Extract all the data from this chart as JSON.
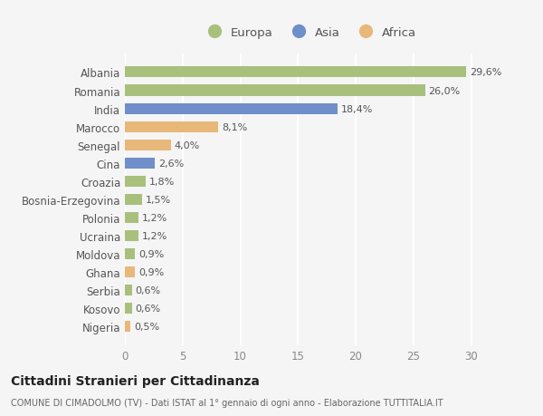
{
  "countries": [
    "Albania",
    "Romania",
    "India",
    "Marocco",
    "Senegal",
    "Cina",
    "Croazia",
    "Bosnia-Erzegovina",
    "Polonia",
    "Ucraina",
    "Moldova",
    "Ghana",
    "Serbia",
    "Kosovo",
    "Nigeria"
  ],
  "values": [
    29.6,
    26.0,
    18.4,
    8.1,
    4.0,
    2.6,
    1.8,
    1.5,
    1.2,
    1.2,
    0.9,
    0.9,
    0.6,
    0.6,
    0.5
  ],
  "labels": [
    "29,6%",
    "26,0%",
    "18,4%",
    "8,1%",
    "4,0%",
    "2,6%",
    "1,8%",
    "1,5%",
    "1,2%",
    "1,2%",
    "0,9%",
    "0,9%",
    "0,6%",
    "0,6%",
    "0,5%"
  ],
  "continents": [
    "Europa",
    "Europa",
    "Asia",
    "Africa",
    "Africa",
    "Asia",
    "Europa",
    "Europa",
    "Europa",
    "Europa",
    "Europa",
    "Africa",
    "Europa",
    "Europa",
    "Africa"
  ],
  "colors": {
    "Europa": "#a8c07c",
    "Asia": "#6e8fc9",
    "Africa": "#e8b87a"
  },
  "background_color": "#f5f5f5",
  "xlim": [
    0,
    32
  ],
  "xticks": [
    0,
    5,
    10,
    15,
    20,
    25,
    30
  ],
  "title_main": "Cittadini Stranieri per Cittadinanza",
  "title_sub": "COMUNE DI CIMADOLMO (TV) - Dati ISTAT al 1° gennaio di ogni anno - Elaborazione TUTTITALIA.IT",
  "grid_color": "#ffffff"
}
